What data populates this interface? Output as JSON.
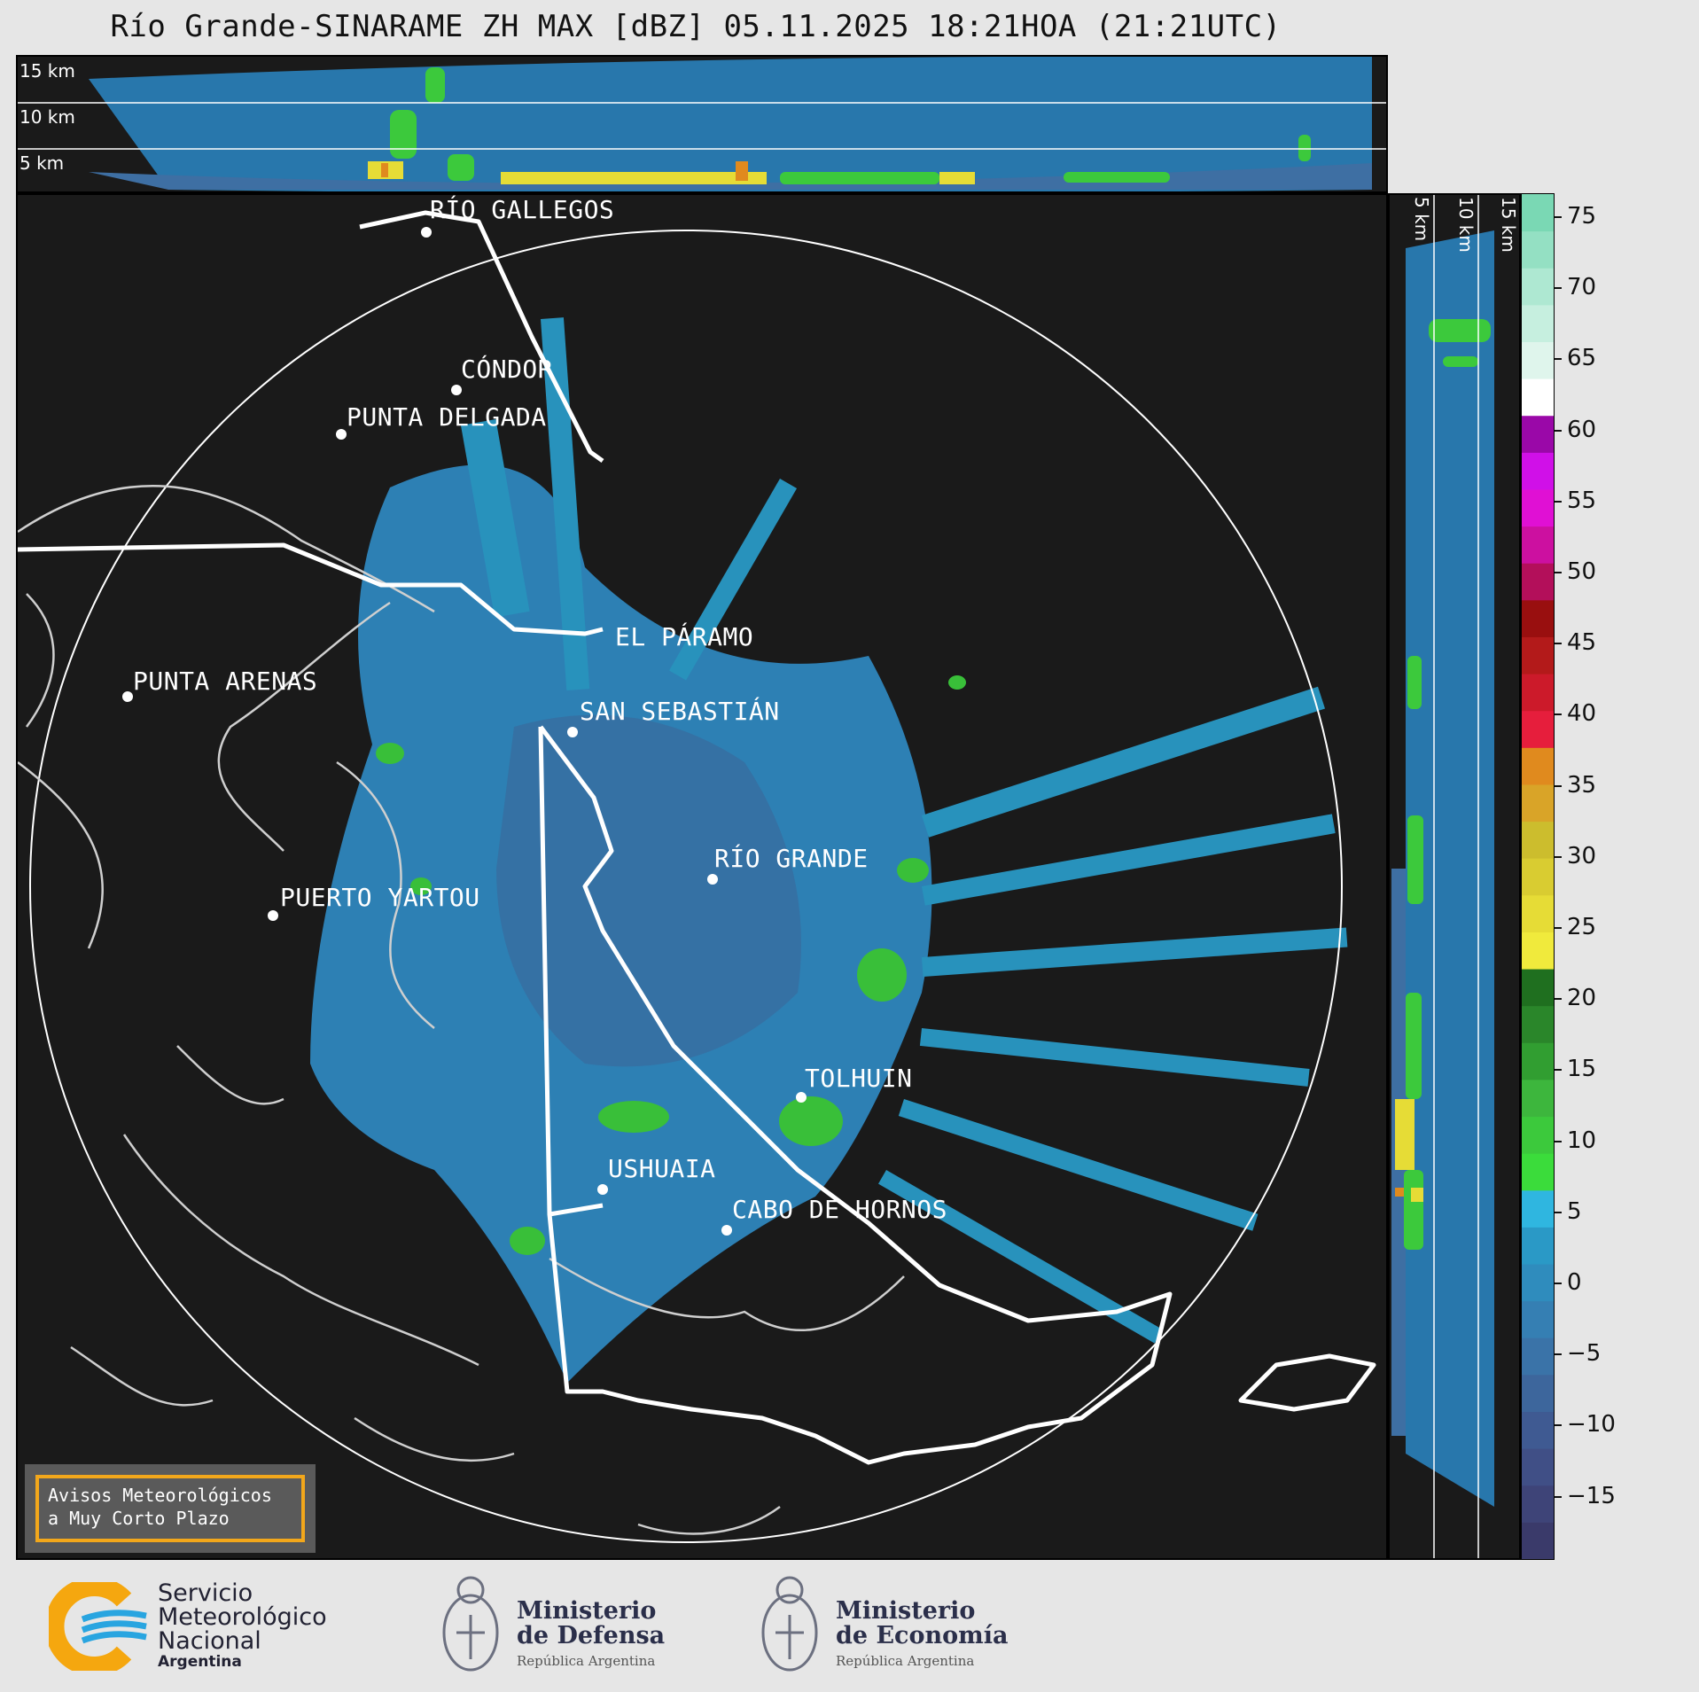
{
  "header": {
    "title": "Río Grande-SINARAME ZH MAX [dBZ] 05.11.2025 18:21HOA (21:21UTC)"
  },
  "top_panel": {
    "heights": [
      "15 km",
      "10 km",
      "5 km"
    ]
  },
  "side_panel": {
    "heights": [
      "5 km",
      "10 km",
      "15 km"
    ]
  },
  "map": {
    "cities": [
      {
        "name": "RÍO GALLEGOS"
      },
      {
        "name": "CÓNDOR"
      },
      {
        "name": "PUNTA DELGADA"
      },
      {
        "name": "EL PÁRAMO"
      },
      {
        "name": "PUNTA ARENAS"
      },
      {
        "name": "SAN SEBASTIÁN"
      },
      {
        "name": "RÍO GRANDE"
      },
      {
        "name": "PUERTO YARTOU"
      },
      {
        "name": "TOLHUIN"
      },
      {
        "name": "USHUAIA"
      },
      {
        "name": "CABO DE HORNOS"
      }
    ]
  },
  "colorbar": {
    "ticks": [
      "75",
      "70",
      "65",
      "60",
      "55",
      "50",
      "45",
      "40",
      "35",
      "30",
      "25",
      "20",
      "15",
      "10",
      "5",
      "0",
      "−5",
      "−10",
      "−15"
    ],
    "colors": [
      "#3a3a6a",
      "#3e4478",
      "#404f86",
      "#3f5a92",
      "#3d669c",
      "#3a73a8",
      "#357fb3",
      "#2f8cbd",
      "#2a99c6",
      "#2fb6e0",
      "#3bdc3b",
      "#3cc93c",
      "#3db63d",
      "#319e31",
      "#2a862a",
      "#1f6f1f",
      "#f0ea3c",
      "#e6dc36",
      "#d9cc31",
      "#ccbd2d",
      "#d9a428",
      "#e08a1e",
      "#e61e3c",
      "#cc1a2a",
      "#b31a1a",
      "#990f0f",
      "#b30f5a",
      "#cc10a0",
      "#e010d4",
      "#d010e8",
      "#9a08a8",
      "#ffffff",
      "#dff5ec",
      "#c6efdf",
      "#aee8d2",
      "#94e0c3",
      "#7ad8b4"
    ],
    "accent_frame": "#f2a71b"
  },
  "legend_box": {
    "line1": "Avisos Meteorológicos",
    "line2": "a Muy Corto Plazo"
  },
  "footer": {
    "smn": {
      "line1": "Servicio",
      "line2": "Meteorológico",
      "line3": "Nacional",
      "line4": "Argentina"
    },
    "defensa": {
      "line1": "Ministerio",
      "line2": "de Defensa",
      "line3": "República Argentina"
    },
    "economia": {
      "line1": "Ministerio",
      "line2": "de Economía",
      "line3": "República Argentina"
    }
  }
}
